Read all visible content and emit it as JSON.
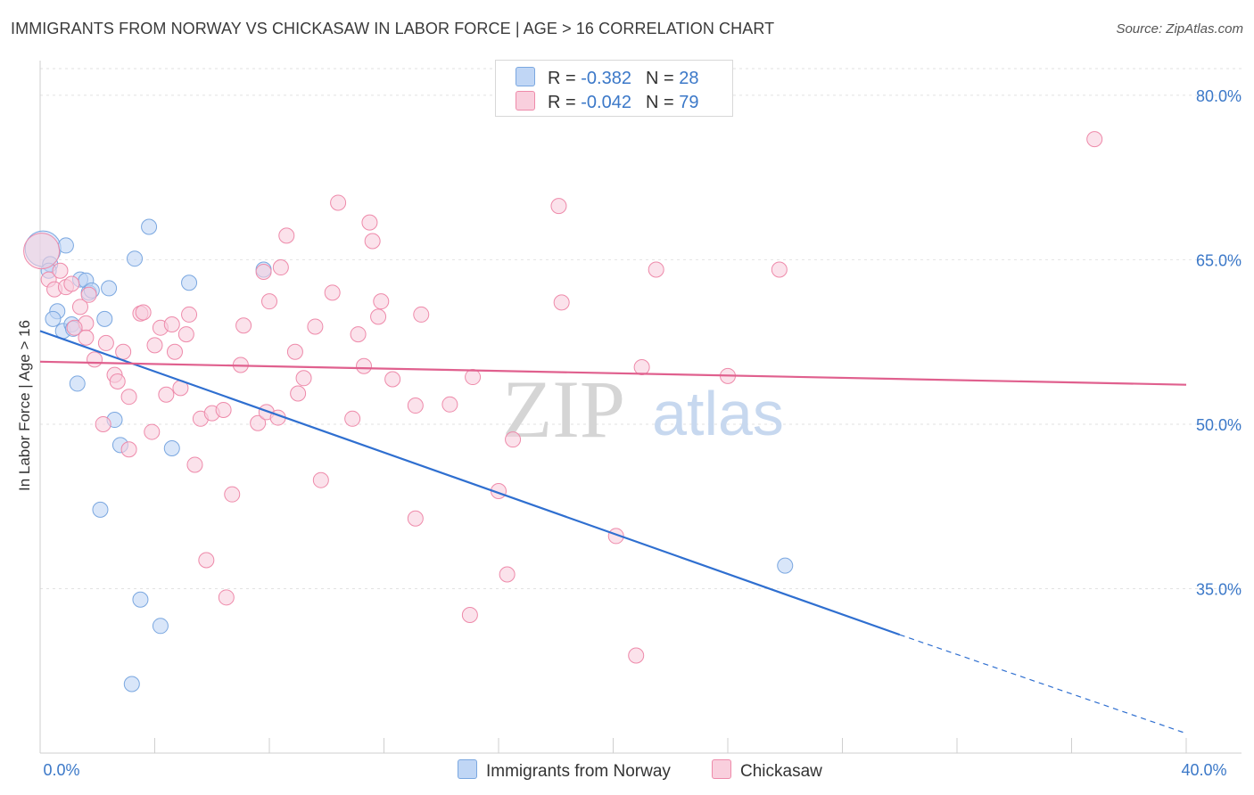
{
  "title": "IMMIGRANTS FROM NORWAY VS CHICKASAW IN LABOR FORCE | AGE > 16 CORRELATION CHART",
  "source": "Source: ZipAtlas.com",
  "watermark": {
    "zip": "ZIP",
    "atlas": "atlas"
  },
  "legend": {
    "r_label": "R =",
    "n_label": "N =",
    "items": [
      {
        "name": "Immigrants from Norway",
        "r": "-0.382",
        "n": "28",
        "color": "#7aa7e0",
        "fill": "#c0d6f5"
      },
      {
        "name": "Chickasaw",
        "r": "-0.042",
        "n": "79",
        "color": "#ee8aaa",
        "fill": "#f9cfdd"
      }
    ]
  },
  "chart_data": {
    "type": "scatter",
    "title": "IMMIGRANTS FROM NORWAY VS CHICKASAW IN LABOR FORCE | AGE > 16 CORRELATION CHART",
    "xlabel": "",
    "ylabel": "In Labor Force | Age > 16",
    "xlim": [
      0,
      40
    ],
    "ylim": [
      20,
      83
    ],
    "x_tick_labels": [
      {
        "value": 0,
        "label": "0.0%"
      },
      {
        "value": 40,
        "label": "40.0%"
      }
    ],
    "y_tick_labels": [
      {
        "value": 80,
        "label": "80.0%"
      },
      {
        "value": 65,
        "label": "65.0%"
      },
      {
        "value": 50,
        "label": "50.0%"
      },
      {
        "value": 35,
        "label": "35.0%"
      }
    ],
    "x_minor_ticks": [
      4,
      8,
      12,
      16,
      20,
      24,
      28,
      32,
      36,
      40
    ],
    "series": [
      {
        "name": "Immigrants from Norway",
        "color": "#7aa7e0",
        "fill": "#c0d6f5",
        "trend": {
          "x0": 0,
          "y0": 58.5,
          "x1": 30.0,
          "y1": 30.8,
          "dash_to_x": 40,
          "dash_to_y": 21.8,
          "color": "#2f6fd0"
        },
        "points": [
          {
            "x": 0.1,
            "y": 66.0,
            "big": true
          },
          {
            "x": 0.35,
            "y": 64.6
          },
          {
            "x": 0.3,
            "y": 64.0
          },
          {
            "x": 0.9,
            "y": 66.3
          },
          {
            "x": 1.4,
            "y": 63.2
          },
          {
            "x": 1.6,
            "y": 63.1
          },
          {
            "x": 1.7,
            "y": 62.0
          },
          {
            "x": 1.8,
            "y": 62.2
          },
          {
            "x": 2.4,
            "y": 62.4
          },
          {
            "x": 0.6,
            "y": 60.3
          },
          {
            "x": 0.45,
            "y": 59.6
          },
          {
            "x": 0.8,
            "y": 58.5
          },
          {
            "x": 1.1,
            "y": 59.1
          },
          {
            "x": 1.15,
            "y": 58.7
          },
          {
            "x": 2.25,
            "y": 59.6
          },
          {
            "x": 3.8,
            "y": 68.0
          },
          {
            "x": 3.3,
            "y": 65.1
          },
          {
            "x": 5.2,
            "y": 62.9
          },
          {
            "x": 7.8,
            "y": 64.1
          },
          {
            "x": 1.3,
            "y": 53.7
          },
          {
            "x": 2.6,
            "y": 50.4
          },
          {
            "x": 2.8,
            "y": 48.1
          },
          {
            "x": 4.6,
            "y": 47.8
          },
          {
            "x": 2.1,
            "y": 42.2
          },
          {
            "x": 3.5,
            "y": 34.0
          },
          {
            "x": 4.2,
            "y": 31.6
          },
          {
            "x": 3.2,
            "y": 26.3
          },
          {
            "x": 26.0,
            "y": 37.1
          }
        ]
      },
      {
        "name": "Chickasaw",
        "color": "#ee8aaa",
        "fill": "#f9cfdd",
        "trend": {
          "x0": 0,
          "y0": 55.7,
          "x1": 40,
          "y1": 53.6,
          "color": "#e0608e"
        },
        "points": [
          {
            "x": 0.05,
            "y": 65.8,
            "big": true
          },
          {
            "x": 0.3,
            "y": 63.2
          },
          {
            "x": 0.5,
            "y": 62.3
          },
          {
            "x": 0.7,
            "y": 64.0
          },
          {
            "x": 0.9,
            "y": 62.5
          },
          {
            "x": 1.1,
            "y": 62.8
          },
          {
            "x": 1.4,
            "y": 60.7
          },
          {
            "x": 1.7,
            "y": 61.8
          },
          {
            "x": 1.6,
            "y": 59.2
          },
          {
            "x": 1.2,
            "y": 58.8
          },
          {
            "x": 1.6,
            "y": 57.9
          },
          {
            "x": 2.3,
            "y": 57.4
          },
          {
            "x": 2.9,
            "y": 56.6
          },
          {
            "x": 1.9,
            "y": 55.9
          },
          {
            "x": 2.6,
            "y": 54.5
          },
          {
            "x": 2.7,
            "y": 53.9
          },
          {
            "x": 3.1,
            "y": 52.5
          },
          {
            "x": 2.2,
            "y": 50.0
          },
          {
            "x": 3.1,
            "y": 47.7
          },
          {
            "x": 3.9,
            "y": 49.3
          },
          {
            "x": 3.5,
            "y": 60.1
          },
          {
            "x": 3.6,
            "y": 60.2
          },
          {
            "x": 4.2,
            "y": 58.8
          },
          {
            "x": 4.6,
            "y": 59.1
          },
          {
            "x": 4.0,
            "y": 57.2
          },
          {
            "x": 4.7,
            "y": 56.6
          },
          {
            "x": 5.1,
            "y": 58.2
          },
          {
            "x": 5.2,
            "y": 60.0
          },
          {
            "x": 4.4,
            "y": 52.7
          },
          {
            "x": 4.9,
            "y": 53.3
          },
          {
            "x": 5.6,
            "y": 50.5
          },
          {
            "x": 6.0,
            "y": 51.0
          },
          {
            "x": 6.4,
            "y": 51.3
          },
          {
            "x": 5.4,
            "y": 46.3
          },
          {
            "x": 6.7,
            "y": 43.6
          },
          {
            "x": 5.8,
            "y": 37.6
          },
          {
            "x": 6.5,
            "y": 34.2
          },
          {
            "x": 7.0,
            "y": 55.4
          },
          {
            "x": 7.1,
            "y": 59.0
          },
          {
            "x": 7.6,
            "y": 50.1
          },
          {
            "x": 7.9,
            "y": 51.1
          },
          {
            "x": 8.3,
            "y": 50.6
          },
          {
            "x": 7.8,
            "y": 63.9
          },
          {
            "x": 8.4,
            "y": 64.3
          },
          {
            "x": 8.0,
            "y": 61.2
          },
          {
            "x": 8.6,
            "y": 67.2
          },
          {
            "x": 8.9,
            "y": 56.6
          },
          {
            "x": 9.0,
            "y": 52.8
          },
          {
            "x": 9.2,
            "y": 54.2
          },
          {
            "x": 9.6,
            "y": 58.9
          },
          {
            "x": 10.2,
            "y": 62.0
          },
          {
            "x": 9.8,
            "y": 44.9
          },
          {
            "x": 10.4,
            "y": 70.2
          },
          {
            "x": 10.9,
            "y": 50.5
          },
          {
            "x": 11.1,
            "y": 58.2
          },
          {
            "x": 11.3,
            "y": 55.3
          },
          {
            "x": 11.5,
            "y": 68.4
          },
          {
            "x": 11.6,
            "y": 66.7
          },
          {
            "x": 11.8,
            "y": 59.8
          },
          {
            "x": 11.9,
            "y": 61.2
          },
          {
            "x": 12.3,
            "y": 54.1
          },
          {
            "x": 13.1,
            "y": 51.7
          },
          {
            "x": 13.3,
            "y": 60.0
          },
          {
            "x": 13.1,
            "y": 41.4
          },
          {
            "x": 14.3,
            "y": 51.8
          },
          {
            "x": 15.1,
            "y": 54.3
          },
          {
            "x": 15.0,
            "y": 32.6
          },
          {
            "x": 16.0,
            "y": 43.9
          },
          {
            "x": 16.3,
            "y": 36.3
          },
          {
            "x": 16.5,
            "y": 48.6
          },
          {
            "x": 18.1,
            "y": 69.9
          },
          {
            "x": 18.2,
            "y": 61.1
          },
          {
            "x": 20.1,
            "y": 39.8
          },
          {
            "x": 21.0,
            "y": 55.2
          },
          {
            "x": 21.5,
            "y": 64.1
          },
          {
            "x": 20.8,
            "y": 28.9
          },
          {
            "x": 24.0,
            "y": 54.4
          },
          {
            "x": 25.8,
            "y": 64.1
          },
          {
            "x": 36.8,
            "y": 76.0
          }
        ]
      }
    ]
  }
}
